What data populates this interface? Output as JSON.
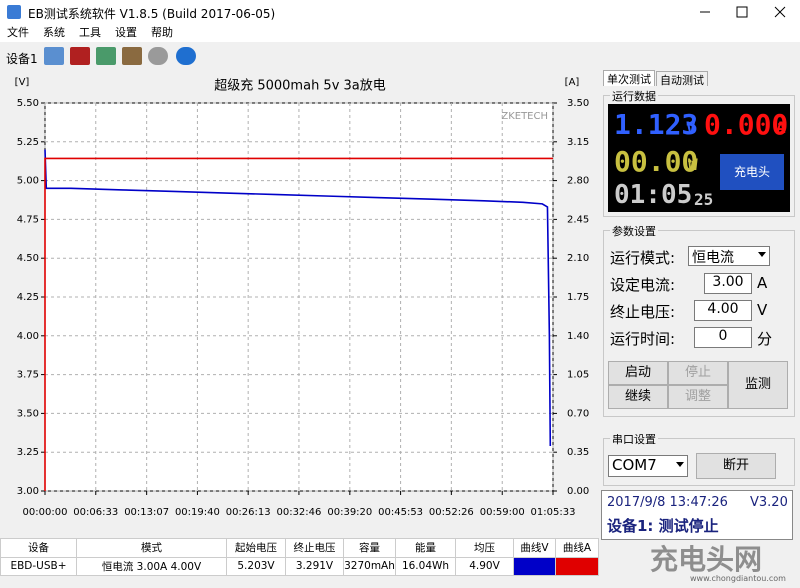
{
  "window": {
    "title": "EB测试系统软件 V1.8.5 (Build 2017-06-05)",
    "menu": [
      "文件",
      "系统",
      "工具",
      "设置",
      "帮助"
    ],
    "toolbar_label": "设备1"
  },
  "chart_data": {
    "type": "line",
    "title": "超级充  5000mah  5v 3a放电",
    "y_label": "[V]",
    "y2_label": "[A]",
    "watermark": "ZKETECH",
    "xlim": [
      0,
      3933
    ],
    "xticks": [
      {
        "value": 0,
        "label": "00:00:00"
      },
      {
        "value": 393,
        "label": "00:06:33"
      },
      {
        "value": 787,
        "label": "00:13:07"
      },
      {
        "value": 1180,
        "label": "00:19:40"
      },
      {
        "value": 1573,
        "label": "00:26:13"
      },
      {
        "value": 1966,
        "label": "00:32:46"
      },
      {
        "value": 2360,
        "label": "00:39:20"
      },
      {
        "value": 2753,
        "label": "00:45:53"
      },
      {
        "value": 3146,
        "label": "00:52:26"
      },
      {
        "value": 3540,
        "label": "00:59:00"
      },
      {
        "value": 3933,
        "label": "01:05:33"
      }
    ],
    "ylim": [
      3,
      5.5
    ],
    "yticks": [
      {
        "value": 3,
        "label": "3.00"
      },
      {
        "value": 3.25,
        "label": "3.25"
      },
      {
        "value": 3.5,
        "label": "3.50"
      },
      {
        "value": 3.75,
        "label": "3.75"
      },
      {
        "value": 4,
        "label": "4.00"
      },
      {
        "value": 4.25,
        "label": "4.25"
      },
      {
        "value": 4.5,
        "label": "4.50"
      },
      {
        "value": 4.75,
        "label": "4.75"
      },
      {
        "value": 5,
        "label": "5.00"
      },
      {
        "value": 5.25,
        "label": "5.25"
      },
      {
        "value": 5.5,
        "label": "5.50"
      }
    ],
    "y2lim": [
      0,
      3.5
    ],
    "y2ticks": [
      {
        "value": 0,
        "label": "0.00"
      },
      {
        "value": 0.35,
        "label": "0.35"
      },
      {
        "value": 0.7,
        "label": "0.70"
      },
      {
        "value": 1.05,
        "label": "1.05"
      },
      {
        "value": 1.4,
        "label": "1.40"
      },
      {
        "value": 1.75,
        "label": "1.75"
      },
      {
        "value": 2.1,
        "label": "2.10"
      },
      {
        "value": 2.45,
        "label": "2.45"
      },
      {
        "value": 2.8,
        "label": "2.80"
      },
      {
        "value": 3.15,
        "label": "3.15"
      },
      {
        "value": 3.5,
        "label": "3.50"
      }
    ],
    "grid": true,
    "series": [
      {
        "color": "#0000c8",
        "x": [
          0,
          10,
          200,
          600,
          1000,
          1400,
          1800,
          2200,
          2600,
          3000,
          3400,
          3700,
          3850,
          3890,
          3905,
          3912
        ],
        "values": [
          5.2,
          4.95,
          4.95,
          4.94,
          4.93,
          4.92,
          4.91,
          4.9,
          4.89,
          4.88,
          4.87,
          4.86,
          4.85,
          4.83,
          4.0,
          3.29
        ]
      },
      {
        "color": "#e00000",
        "axis": "y2",
        "x": [
          0,
          0,
          3933
        ],
        "values": [
          0,
          3.0,
          3.0
        ]
      }
    ]
  },
  "table": {
    "headers": [
      "设备",
      "模式",
      "起始电压",
      "终止电压",
      "容量",
      "能量",
      "均压",
      "曲线V",
      "曲线A"
    ],
    "rows": [
      [
        "EBD-USB+",
        "恒电流  3.00A  4.00V",
        "5.203V",
        "3.291V",
        "3270mAh",
        "16.04Wh",
        "4.90V"
      ]
    ]
  },
  "panel": {
    "tabs": [
      "单次测试",
      "自动测试"
    ],
    "run_data": {
      "title": "运行数据",
      "voltage": "1.123",
      "voltage_unit": "V",
      "current": "0.000",
      "current_unit": "A",
      "power": "00.00",
      "power_unit": "W",
      "time": "01:05",
      "seconds": "25",
      "logo": "充电头"
    },
    "params": {
      "title": "参数设置",
      "mode_label": "运行模式:",
      "mode": "恒电流",
      "current_label": "设定电流:",
      "current": "3.00",
      "current_unit": "A",
      "voltage_label": "终止电压:",
      "voltage": "4.00",
      "voltage_unit": "V",
      "time_label": "运行时间:",
      "time": "0",
      "time_unit": "分"
    },
    "buttons": [
      "启动",
      "停止",
      "继续",
      "调整",
      "监测"
    ],
    "serial": {
      "title": "串口设置",
      "port": "COM7",
      "button": "断开"
    },
    "status": {
      "datetime": "2017/9/8 13:47:26",
      "version": "V3.20",
      "state": "设备1: 测试停止"
    }
  },
  "watermark": {
    "logo": "充电头网",
    "url": "www.chongdiantou.com"
  }
}
